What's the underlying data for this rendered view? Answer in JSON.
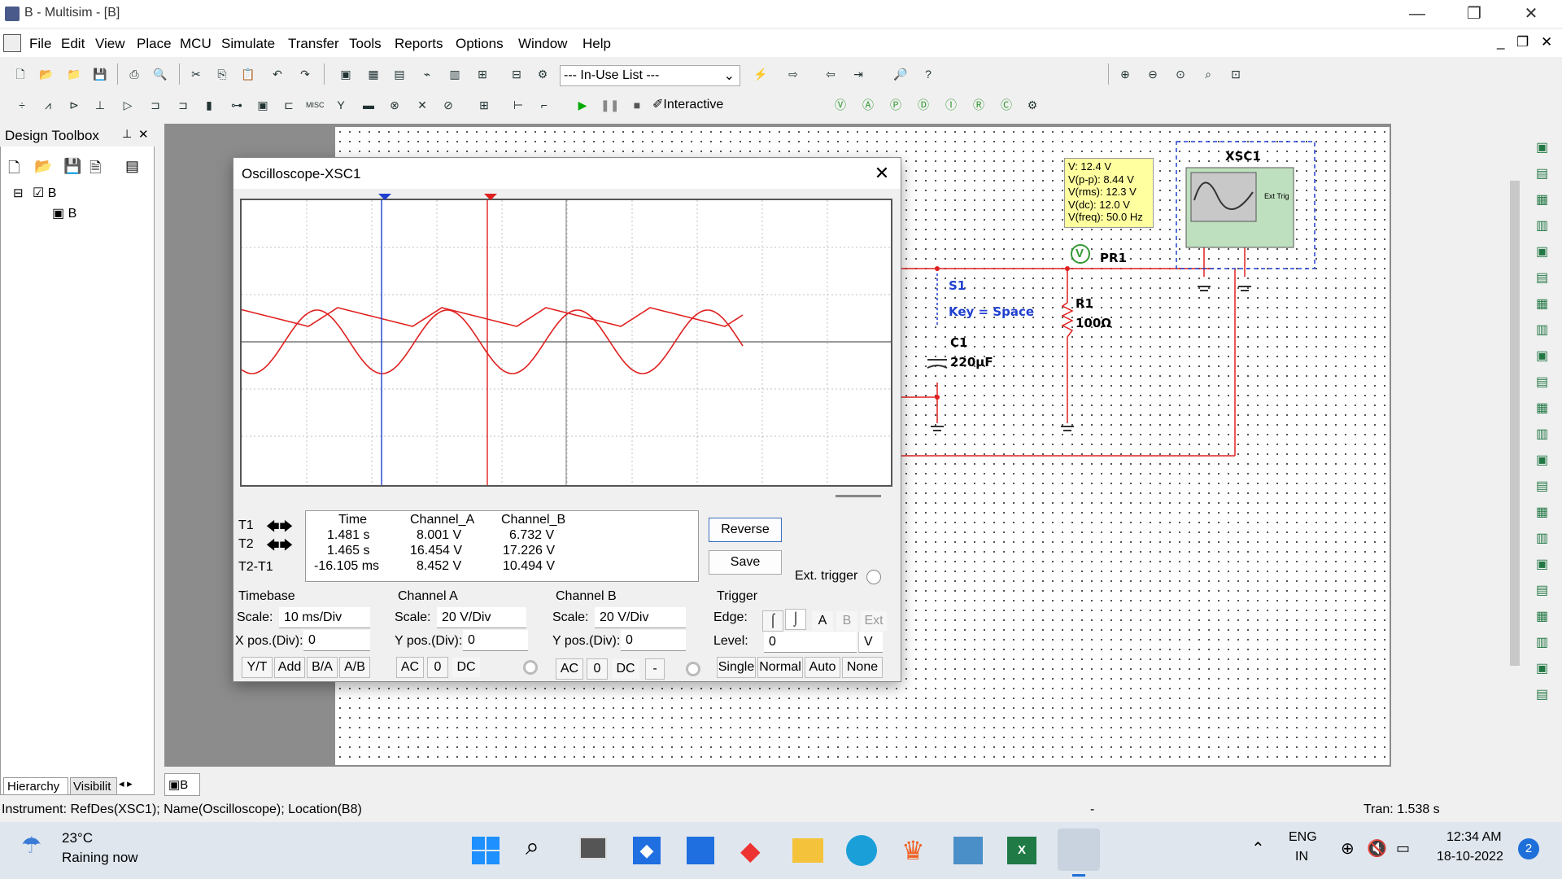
{
  "app": {
    "title": "B - Multisim - [B]"
  },
  "menu": {
    "items": [
      "File",
      "Edit",
      "View",
      "Place",
      "MCU",
      "Simulate",
      "Transfer",
      "Tools",
      "Reports",
      "Options",
      "Window",
      "Help"
    ]
  },
  "toolbar": {
    "in_use_list": "--- In-Use List ---",
    "mode": "Interactive"
  },
  "design_toolbox": {
    "title": "Design Toolbox",
    "tree_root": "B",
    "tree_child": "B",
    "tabs": [
      "Hierarchy",
      "Visibilit"
    ]
  },
  "sheet_tab": {
    "label": "B"
  },
  "oscilloscope": {
    "title": "Oscilloscope-XSC1",
    "readout": {
      "headers": [
        "Time",
        "Channel_A",
        "Channel_B"
      ],
      "rows": [
        {
          "label": "T1",
          "time": "1.481 s",
          "a": "8.001 V",
          "b": "6.732 V"
        },
        {
          "label": "T2",
          "time": "1.465 s",
          "a": "16.454 V",
          "b": "17.226 V"
        },
        {
          "label": "T2-T1",
          "time": "-16.105 ms",
          "a": "8.452 V",
          "b": "10.494 V"
        }
      ]
    },
    "reverse_label": "Reverse",
    "save_label": "Save",
    "ext_trigger_label": "Ext. trigger",
    "timebase": {
      "title": "Timebase",
      "scale_label": "Scale:",
      "scale": "10 ms/Div",
      "xpos_label": "X pos.(Div):",
      "xpos": "0",
      "modes": [
        "Y/T",
        "Add",
        "B/A",
        "A/B"
      ]
    },
    "channel_a": {
      "title": "Channel A",
      "scale_label": "Scale:",
      "scale": "20  V/Div",
      "ypos_label": "Y pos.(Div):",
      "ypos": "0",
      "coupling": [
        "AC",
        "0",
        "DC"
      ]
    },
    "channel_b": {
      "title": "Channel B",
      "scale_label": "Scale:",
      "scale": "20  V/Div",
      "ypos_label": "Y pos.(Div):",
      "ypos": "0",
      "coupling": [
        "AC",
        "0",
        "DC",
        "-"
      ]
    },
    "trigger": {
      "title": "Trigger",
      "edge_label": "Edge:",
      "sources": [
        "A",
        "B",
        "Ext"
      ],
      "level_label": "Level:",
      "level": "0",
      "level_unit": "V",
      "modes": [
        "Single",
        "Normal",
        "Auto",
        "None"
      ]
    }
  },
  "circuit": {
    "probe": {
      "name": "PR1",
      "lines": [
        "V: 12.4 V",
        "V(p-p): 8.44 V",
        "V(rms): 12.3 V",
        "V(dc): 12.0 V",
        "V(freq): 50.0 Hz"
      ]
    },
    "s1": "S1",
    "key": "Key = Space",
    "c1": "C1",
    "c1_value": "220µF",
    "r1": "R1",
    "r1_value": "100Ω",
    "xsc1": "XSC1",
    "ext_trig": "Ext Trig"
  },
  "status": {
    "instrument": "Instrument: RefDes(XSC1); Name(Oscilloscope); Location(B8)",
    "dash": "-",
    "tran": "Tran: 1.538 s"
  },
  "taskbar": {
    "weather_temp": "23°C",
    "weather_desc": "Raining now",
    "lang1": "ENG",
    "lang2": "IN",
    "time": "12:34 AM",
    "date": "18-10-2022",
    "badge": "2"
  },
  "colors": {
    "trace": "#e02020",
    "cursor1": "#2040d0",
    "cursor2": "#e02020",
    "wire": "#e02020"
  }
}
